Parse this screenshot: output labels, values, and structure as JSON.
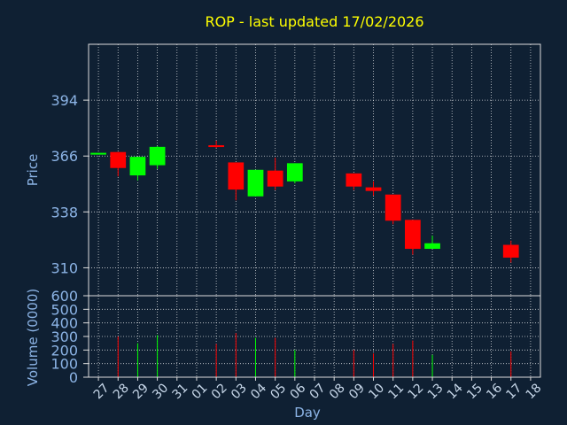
{
  "chart_data": [
    {
      "type": "candlestick",
      "title": "ROP - last updated 17/02/2026",
      "ylabel": "Price",
      "xlabel": "Day",
      "y_ticks": [
        394,
        366,
        338,
        310
      ],
      "ylim": [
        296,
        422
      ],
      "grid": true,
      "colors": {
        "up": "#00ff00",
        "down": "#ff0000",
        "background": "#0f2033",
        "grid": "#ffffff",
        "axis_text": "#8cb4e6",
        "title": "#ffff00"
      },
      "x_labels": [
        "27",
        "28",
        "29",
        "30",
        "31",
        "01",
        "02",
        "03",
        "04",
        "05",
        "06",
        "07",
        "08",
        "09",
        "10",
        "11",
        "12",
        "13",
        "14",
        "15",
        "16",
        "17",
        "18"
      ],
      "candles": [
        {
          "x": 0,
          "open": 367.0,
          "close": 367.6,
          "high": 367.6,
          "low": 367.0
        },
        {
          "x": 1,
          "open": 368.0,
          "close": 360.0,
          "high": 368.0,
          "low": 355.8
        },
        {
          "x": 2,
          "open": 356.3,
          "close": 365.6,
          "high": 365.6,
          "low": 353.8
        },
        {
          "x": 3,
          "open": 361.4,
          "close": 370.6,
          "high": 371.0,
          "low": 359.5
        },
        {
          "x": 6,
          "open": 371.4,
          "close": 370.9,
          "high": 373.7,
          "low": 370.1
        },
        {
          "x": 7,
          "open": 362.8,
          "close": 349.2,
          "high": 362.8,
          "low": 343.8
        },
        {
          "x": 8,
          "open": 345.8,
          "close": 359.1,
          "high": 359.1,
          "low": 345.8
        },
        {
          "x": 9,
          "open": 358.7,
          "close": 350.7,
          "high": 365.2,
          "low": 349.0
        },
        {
          "x": 10,
          "open": 353.3,
          "close": 362.4,
          "high": 362.4,
          "low": 352.3
        },
        {
          "x": 13,
          "open": 357.3,
          "close": 350.7,
          "high": 357.3,
          "low": 349.0
        },
        {
          "x": 14,
          "open": 350.3,
          "close": 348.5,
          "high": 353.3,
          "low": 346.1
        },
        {
          "x": 15,
          "open": 346.7,
          "close": 333.6,
          "high": 346.7,
          "low": 331.8
        },
        {
          "x": 16,
          "open": 334.0,
          "close": 319.5,
          "high": 334.0,
          "low": 316.6
        },
        {
          "x": 17,
          "open": 319.5,
          "close": 322.3,
          "high": 326.1,
          "low": 319.5
        },
        {
          "x": 21,
          "open": 321.5,
          "close": 315.1,
          "high": 323.6,
          "low": 312.6
        }
      ]
    },
    {
      "type": "bar",
      "ylabel": "Volume (0000)",
      "y_ticks": [
        0,
        100,
        200,
        300,
        400,
        500,
        600
      ],
      "ylim": [
        0,
        600
      ],
      "grid": true,
      "bars": [
        {
          "x": 1,
          "value": 300,
          "color": "#ff0000"
        },
        {
          "x": 2,
          "value": 250,
          "color": "#00ff00"
        },
        {
          "x": 3,
          "value": 310,
          "color": "#00ff00"
        },
        {
          "x": 6,
          "value": 245,
          "color": "#ff0000"
        },
        {
          "x": 7,
          "value": 325,
          "color": "#ff0000"
        },
        {
          "x": 8,
          "value": 290,
          "color": "#00ff00"
        },
        {
          "x": 9,
          "value": 290,
          "color": "#ff0000"
        },
        {
          "x": 10,
          "value": 200,
          "color": "#00ff00"
        },
        {
          "x": 13,
          "value": 200,
          "color": "#ff0000"
        },
        {
          "x": 14,
          "value": 175,
          "color": "#ff0000"
        },
        {
          "x": 15,
          "value": 245,
          "color": "#ff0000"
        },
        {
          "x": 16,
          "value": 270,
          "color": "#ff0000"
        },
        {
          "x": 17,
          "value": 165,
          "color": "#00ff00"
        },
        {
          "x": 21,
          "value": 190,
          "color": "#ff0000"
        }
      ]
    }
  ]
}
